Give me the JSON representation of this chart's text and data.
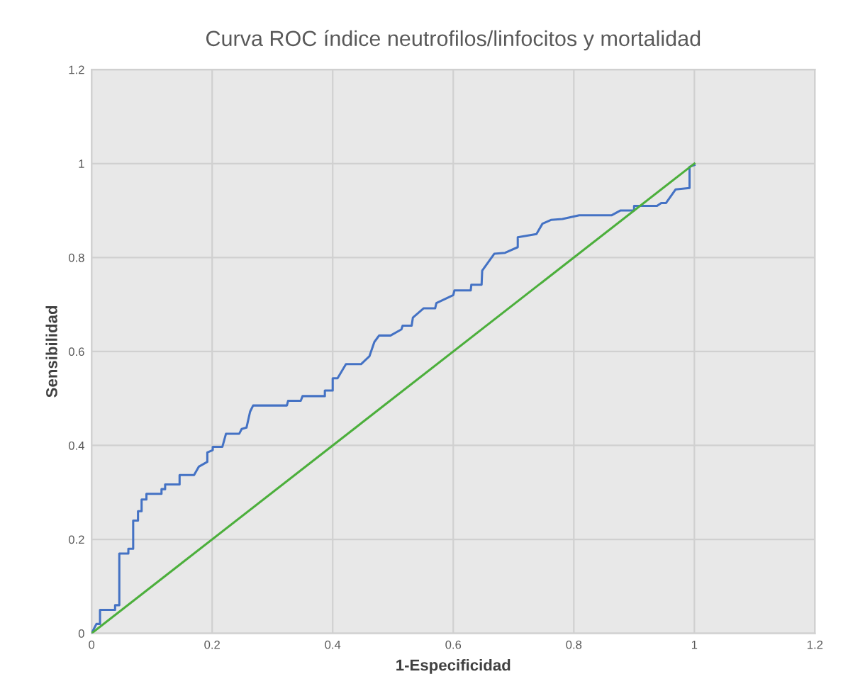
{
  "chart_data": {
    "type": "line",
    "title": "Curva ROC índice neutrofilos/linfocitos y mortalidad",
    "xlabel": "1-Especificidad",
    "ylabel": "Sensibilidad",
    "xlim": [
      0,
      1.2
    ],
    "ylim": [
      0,
      1.2
    ],
    "xticks": [
      0,
      0.2,
      0.4,
      0.6,
      0.8,
      1,
      1.2
    ],
    "yticks": [
      0,
      0.2,
      0.4,
      0.6,
      0.8,
      1,
      1.2
    ],
    "grid": true,
    "marker": "none",
    "line_style": "solid",
    "series": [
      {
        "color": "#4472c4",
        "x": [
          0,
          0.008,
          0.014,
          0.014,
          0.039,
          0.039,
          0.046,
          0.046,
          0.061,
          0.061,
          0.069,
          0.069,
          0.077,
          0.077,
          0.083,
          0.083,
          0.091,
          0.091,
          0.116,
          0.116,
          0.122,
          0.122,
          0.146,
          0.146,
          0.17,
          0.178,
          0.192,
          0.192,
          0.201,
          0.201,
          0.217,
          0.223,
          0.245,
          0.249,
          0.257,
          0.263,
          0.268,
          0.324,
          0.326,
          0.347,
          0.35,
          0.387,
          0.387,
          0.4,
          0.4,
          0.408,
          0.422,
          0.447,
          0.461,
          0.469,
          0.473,
          0.477,
          0.496,
          0.514,
          0.516,
          0.531,
          0.533,
          0.551,
          0.57,
          0.572,
          0.6,
          0.602,
          0.629,
          0.63,
          0.647,
          0.648,
          0.668,
          0.686,
          0.707,
          0.707,
          0.738,
          0.748,
          0.762,
          0.781,
          0.809,
          0.863,
          0.877,
          0.9,
          0.9,
          0.938,
          0.945,
          0.953,
          0.969,
          0.992,
          0.992,
          1.0
        ],
        "values": [
          0,
          0.02,
          0.02,
          0.05,
          0.05,
          0.06,
          0.06,
          0.17,
          0.17,
          0.18,
          0.18,
          0.24,
          0.24,
          0.26,
          0.26,
          0.285,
          0.285,
          0.297,
          0.297,
          0.307,
          0.307,
          0.317,
          0.317,
          0.337,
          0.337,
          0.355,
          0.365,
          0.385,
          0.39,
          0.397,
          0.397,
          0.425,
          0.425,
          0.435,
          0.438,
          0.472,
          0.485,
          0.485,
          0.495,
          0.495,
          0.505,
          0.505,
          0.517,
          0.517,
          0.543,
          0.543,
          0.573,
          0.573,
          0.59,
          0.62,
          0.627,
          0.634,
          0.634,
          0.647,
          0.655,
          0.655,
          0.672,
          0.692,
          0.692,
          0.703,
          0.72,
          0.73,
          0.73,
          0.742,
          0.742,
          0.772,
          0.808,
          0.81,
          0.822,
          0.843,
          0.85,
          0.872,
          0.88,
          0.882,
          0.89,
          0.89,
          0.9,
          0.9,
          0.91,
          0.91,
          0.916,
          0.916,
          0.945,
          0.948,
          0.993,
          0.997
        ]
      },
      {
        "color": "#4caf3c",
        "x": [
          0,
          1
        ],
        "values": [
          0,
          1
        ]
      }
    ]
  }
}
